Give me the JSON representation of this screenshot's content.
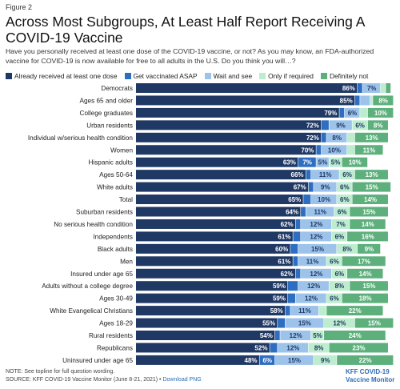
{
  "figure_label": "Figure 2",
  "title": "Across Most Subgroups, At Least Half Report Receiving A COVID-19 Vaccine",
  "subtitle": "Have you personally received at least one dose of the COVID-19 vaccine, or not? As you may know, an FDA-authorized vaccine for COVID-19 is now available for free to all adults in the U.S. Do you think you will…?",
  "colors": [
    "#1f3864",
    "#2e6ec0",
    "#9dc3ea",
    "#bdeccf",
    "#5db07c"
  ],
  "footer": {
    "note": "NOTE: See topline for full question wording.",
    "source": "SOURCE: KFF COVID-19 Vaccine Monitor (June 8-21, 2021) •",
    "link": "Download PNG"
  },
  "logo": {
    "line1": "KFF COVID-19",
    "line2": "Vaccine Monitor"
  },
  "chart_data": {
    "type": "bar",
    "orientation": "horizontal",
    "stacked": true,
    "xlim": [
      0,
      100
    ],
    "value_format": "percent",
    "series": [
      {
        "name": "Already received at least one dose",
        "values": [
          86,
          85,
          79,
          72,
          72,
          70,
          63,
          66,
          67,
          65,
          64,
          62,
          61,
          60,
          61,
          62,
          59,
          59,
          58,
          55,
          54,
          52,
          48
        ]
      },
      {
        "name": "Get vaccinated ASAP",
        "values": [
          2,
          2,
          2,
          3,
          2,
          2,
          7,
          2,
          2,
          3,
          2,
          2,
          3,
          3,
          2,
          2,
          4,
          3,
          2,
          3,
          2,
          3,
          6
        ]
      },
      {
        "name": "Wait and see",
        "values": [
          7,
          4,
          6,
          9,
          8,
          10,
          5,
          11,
          9,
          10,
          11,
          12,
          12,
          15,
          11,
          12,
          12,
          12,
          11,
          15,
          12,
          12,
          15
        ]
      },
      {
        "name": "Only if required",
        "values": [
          2,
          1,
          3,
          6,
          3,
          3,
          5,
          6,
          6,
          6,
          6,
          7,
          6,
          8,
          6,
          6,
          8,
          6,
          3,
          12,
          5,
          8,
          9
        ]
      },
      {
        "name": "Definitely not",
        "values": [
          2,
          8,
          10,
          8,
          13,
          11,
          10,
          13,
          15,
          14,
          15,
          14,
          16,
          9,
          17,
          14,
          15,
          18,
          22,
          15,
          24,
          23,
          22
        ]
      }
    ],
    "categories": [
      "Democrats",
      "Ages 65 and older",
      "College graduates",
      "Urban residents",
      "Individual w/serious health condition",
      "Women",
      "Hispanic adults",
      "Ages 50-64",
      "White adults",
      "Total",
      "Suburban residents",
      "No serious health condition",
      "Independents",
      "Black adults",
      "Men",
      "Insured under age 65",
      "Adults without a college degree",
      "Ages 30-49",
      "White Evangelical Christians",
      "Ages 18-29",
      "Rural residents",
      "Republicans",
      "Uninsured under age 65"
    ]
  }
}
